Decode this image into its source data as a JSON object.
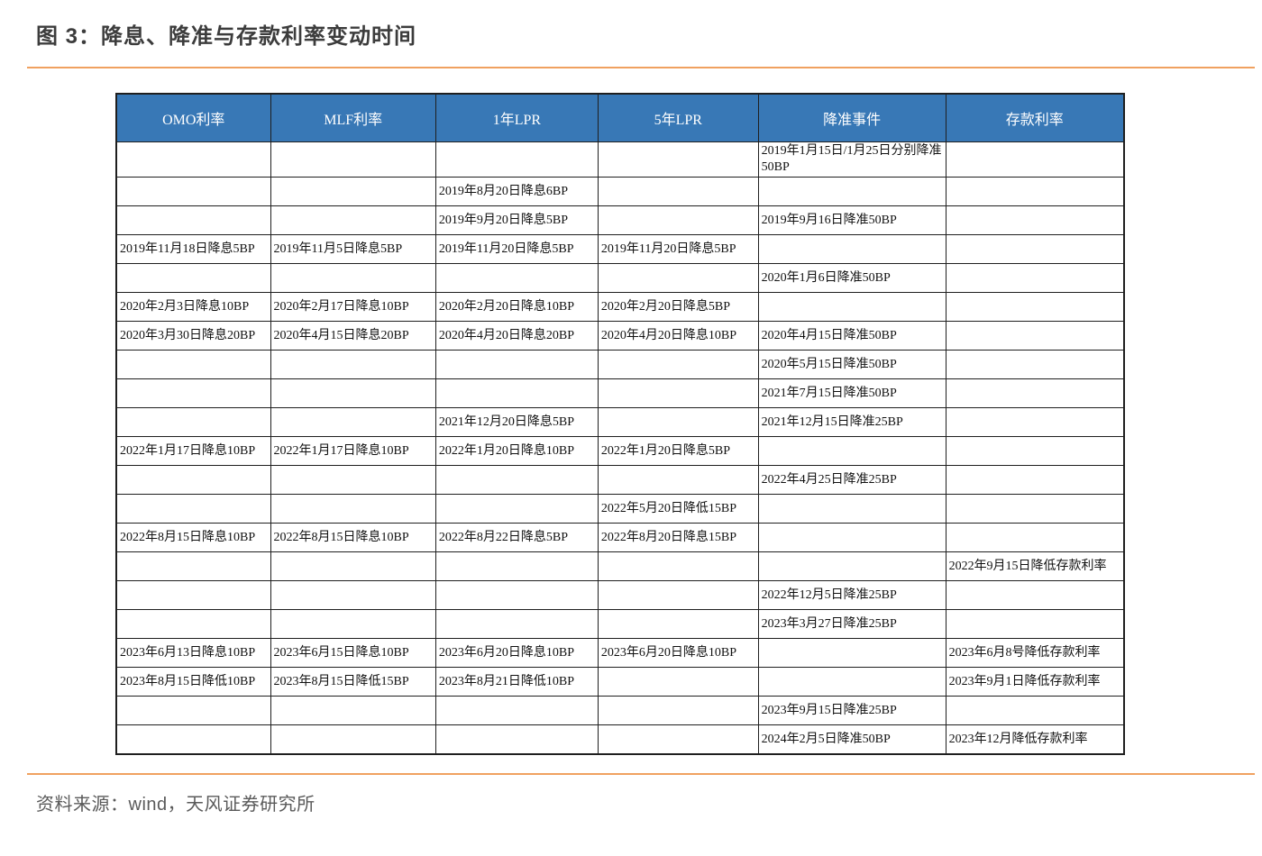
{
  "figure": {
    "title": "图 3：降息、降准与存款利率变动时间",
    "source": "资料来源：wind，天风证券研究所"
  },
  "colors": {
    "header_bg": "#3878B6",
    "header_text": "#FFFFFF",
    "accent_line": "#F0A160",
    "table_border": "#1F1F1F",
    "title_text": "#3C3C3C",
    "source_text": "#5A5A5A"
  },
  "table": {
    "columns": [
      "OMO利率",
      "MLF利率",
      "1年LPR",
      "5年LPR",
      "降准事件",
      "存款利率"
    ],
    "rows": [
      [
        "",
        "",
        "",
        "",
        "2019年1月15日/1月25日分别降准50BP",
        ""
      ],
      [
        "",
        "",
        "2019年8月20日降息6BP",
        "",
        "",
        ""
      ],
      [
        "",
        "",
        "2019年9月20日降息5BP",
        "",
        "2019年9月16日降准50BP",
        ""
      ],
      [
        "2019年11月18日降息5BP",
        "2019年11月5日降息5BP",
        "2019年11月20日降息5BP",
        "2019年11月20日降息5BP",
        "",
        ""
      ],
      [
        "",
        "",
        "",
        "",
        "2020年1月6日降准50BP",
        ""
      ],
      [
        "2020年2月3日降息10BP",
        "2020年2月17日降息10BP",
        "2020年2月20日降息10BP",
        "2020年2月20日降息5BP",
        "",
        ""
      ],
      [
        "2020年3月30日降息20BP",
        "2020年4月15日降息20BP",
        "2020年4月20日降息20BP",
        "2020年4月20日降息10BP",
        "2020年4月15日降准50BP",
        ""
      ],
      [
        "",
        "",
        "",
        "",
        "2020年5月15日降准50BP",
        ""
      ],
      [
        "",
        "",
        "",
        "",
        "2021年7月15日降准50BP",
        ""
      ],
      [
        "",
        "",
        "2021年12月20日降息5BP",
        "",
        "2021年12月15日降准25BP",
        ""
      ],
      [
        "2022年1月17日降息10BP",
        "2022年1月17日降息10BP",
        "2022年1月20日降息10BP",
        "2022年1月20日降息5BP",
        "",
        ""
      ],
      [
        "",
        "",
        "",
        "",
        "2022年4月25日降准25BP",
        ""
      ],
      [
        "",
        "",
        "",
        "2022年5月20日降低15BP",
        "",
        ""
      ],
      [
        "2022年8月15日降息10BP",
        "2022年8月15日降息10BP",
        "2022年8月22日降息5BP",
        "2022年8月20日降息15BP",
        "",
        ""
      ],
      [
        "",
        "",
        "",
        "",
        "",
        "2022年9月15日降低存款利率"
      ],
      [
        "",
        "",
        "",
        "",
        "2022年12月5日降准25BP",
        ""
      ],
      [
        "",
        "",
        "",
        "",
        "2023年3月27日降准25BP",
        ""
      ],
      [
        "2023年6月13日降息10BP",
        "2023年6月15日降息10BP",
        "2023年6月20日降息10BP",
        "2023年6月20日降息10BP",
        "",
        "2023年6月8号降低存款利率"
      ],
      [
        "2023年8月15日降低10BP",
        "2023年8月15日降低15BP",
        "2023年8月21日降低10BP",
        "",
        "",
        "2023年9月1日降低存款利率"
      ],
      [
        "",
        "",
        "",
        "",
        "2023年9月15日降准25BP",
        ""
      ],
      [
        "",
        "",
        "",
        "",
        "2024年2月5日降准50BP",
        "2023年12月降低存款利率"
      ]
    ]
  }
}
